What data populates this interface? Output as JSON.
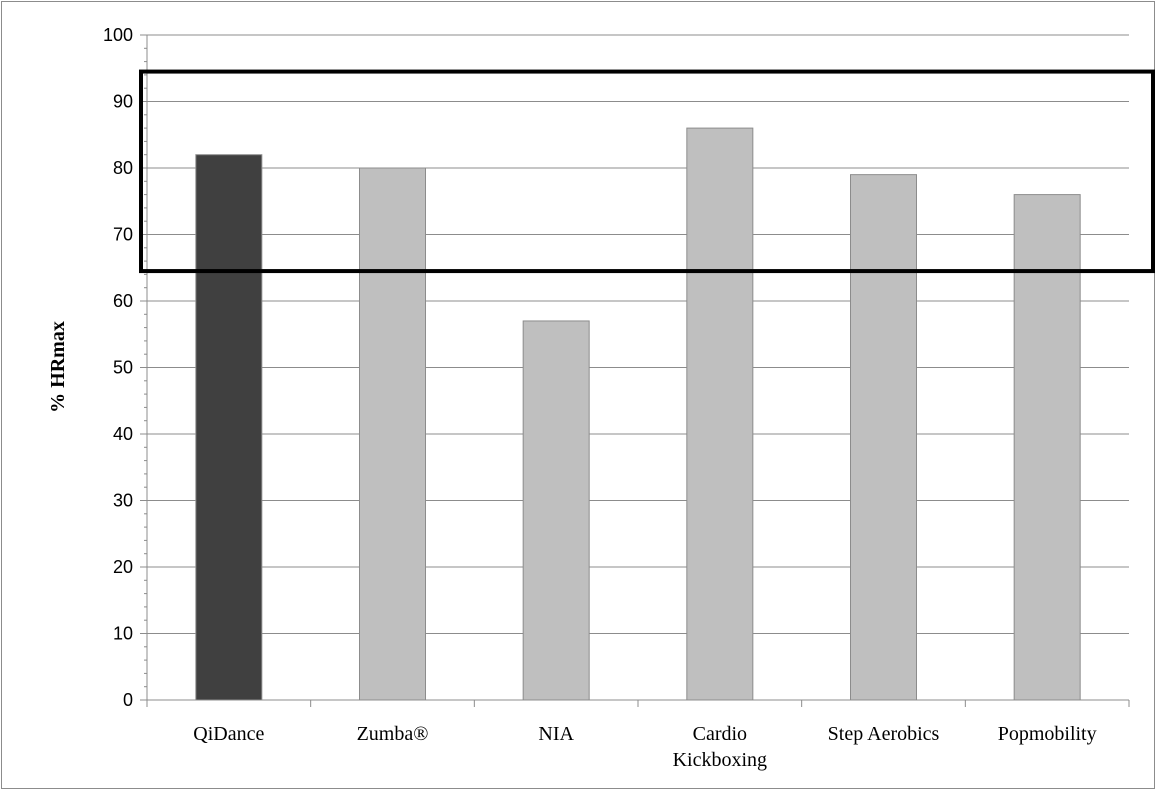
{
  "chart_data": {
    "type": "bar",
    "title": "",
    "xlabel": "",
    "ylabel": "% HRmax",
    "ylim": [
      0,
      100
    ],
    "yticks": [
      "0",
      "10",
      "20",
      "30",
      "40",
      "50",
      "60",
      "70",
      "80",
      "90",
      "100"
    ],
    "categories": [
      [
        "QiDance"
      ],
      [
        "Zumba®"
      ],
      [
        "NIA"
      ],
      [
        "Cardio",
        "Kickboxing"
      ],
      [
        "Step Aerobics"
      ],
      [
        "Popmobility"
      ]
    ],
    "values": [
      82,
      80,
      57,
      86,
      79,
      76
    ],
    "highlighted_category": "QiDance",
    "highlight_color": "#404040",
    "bar_color": "#bfbfbf",
    "bar_edge_color": "#8c8c8c",
    "grid": true,
    "grid_color": "#8c8c8c",
    "highlight_band": [
      64.5,
      94.5
    ],
    "legend": "none"
  }
}
